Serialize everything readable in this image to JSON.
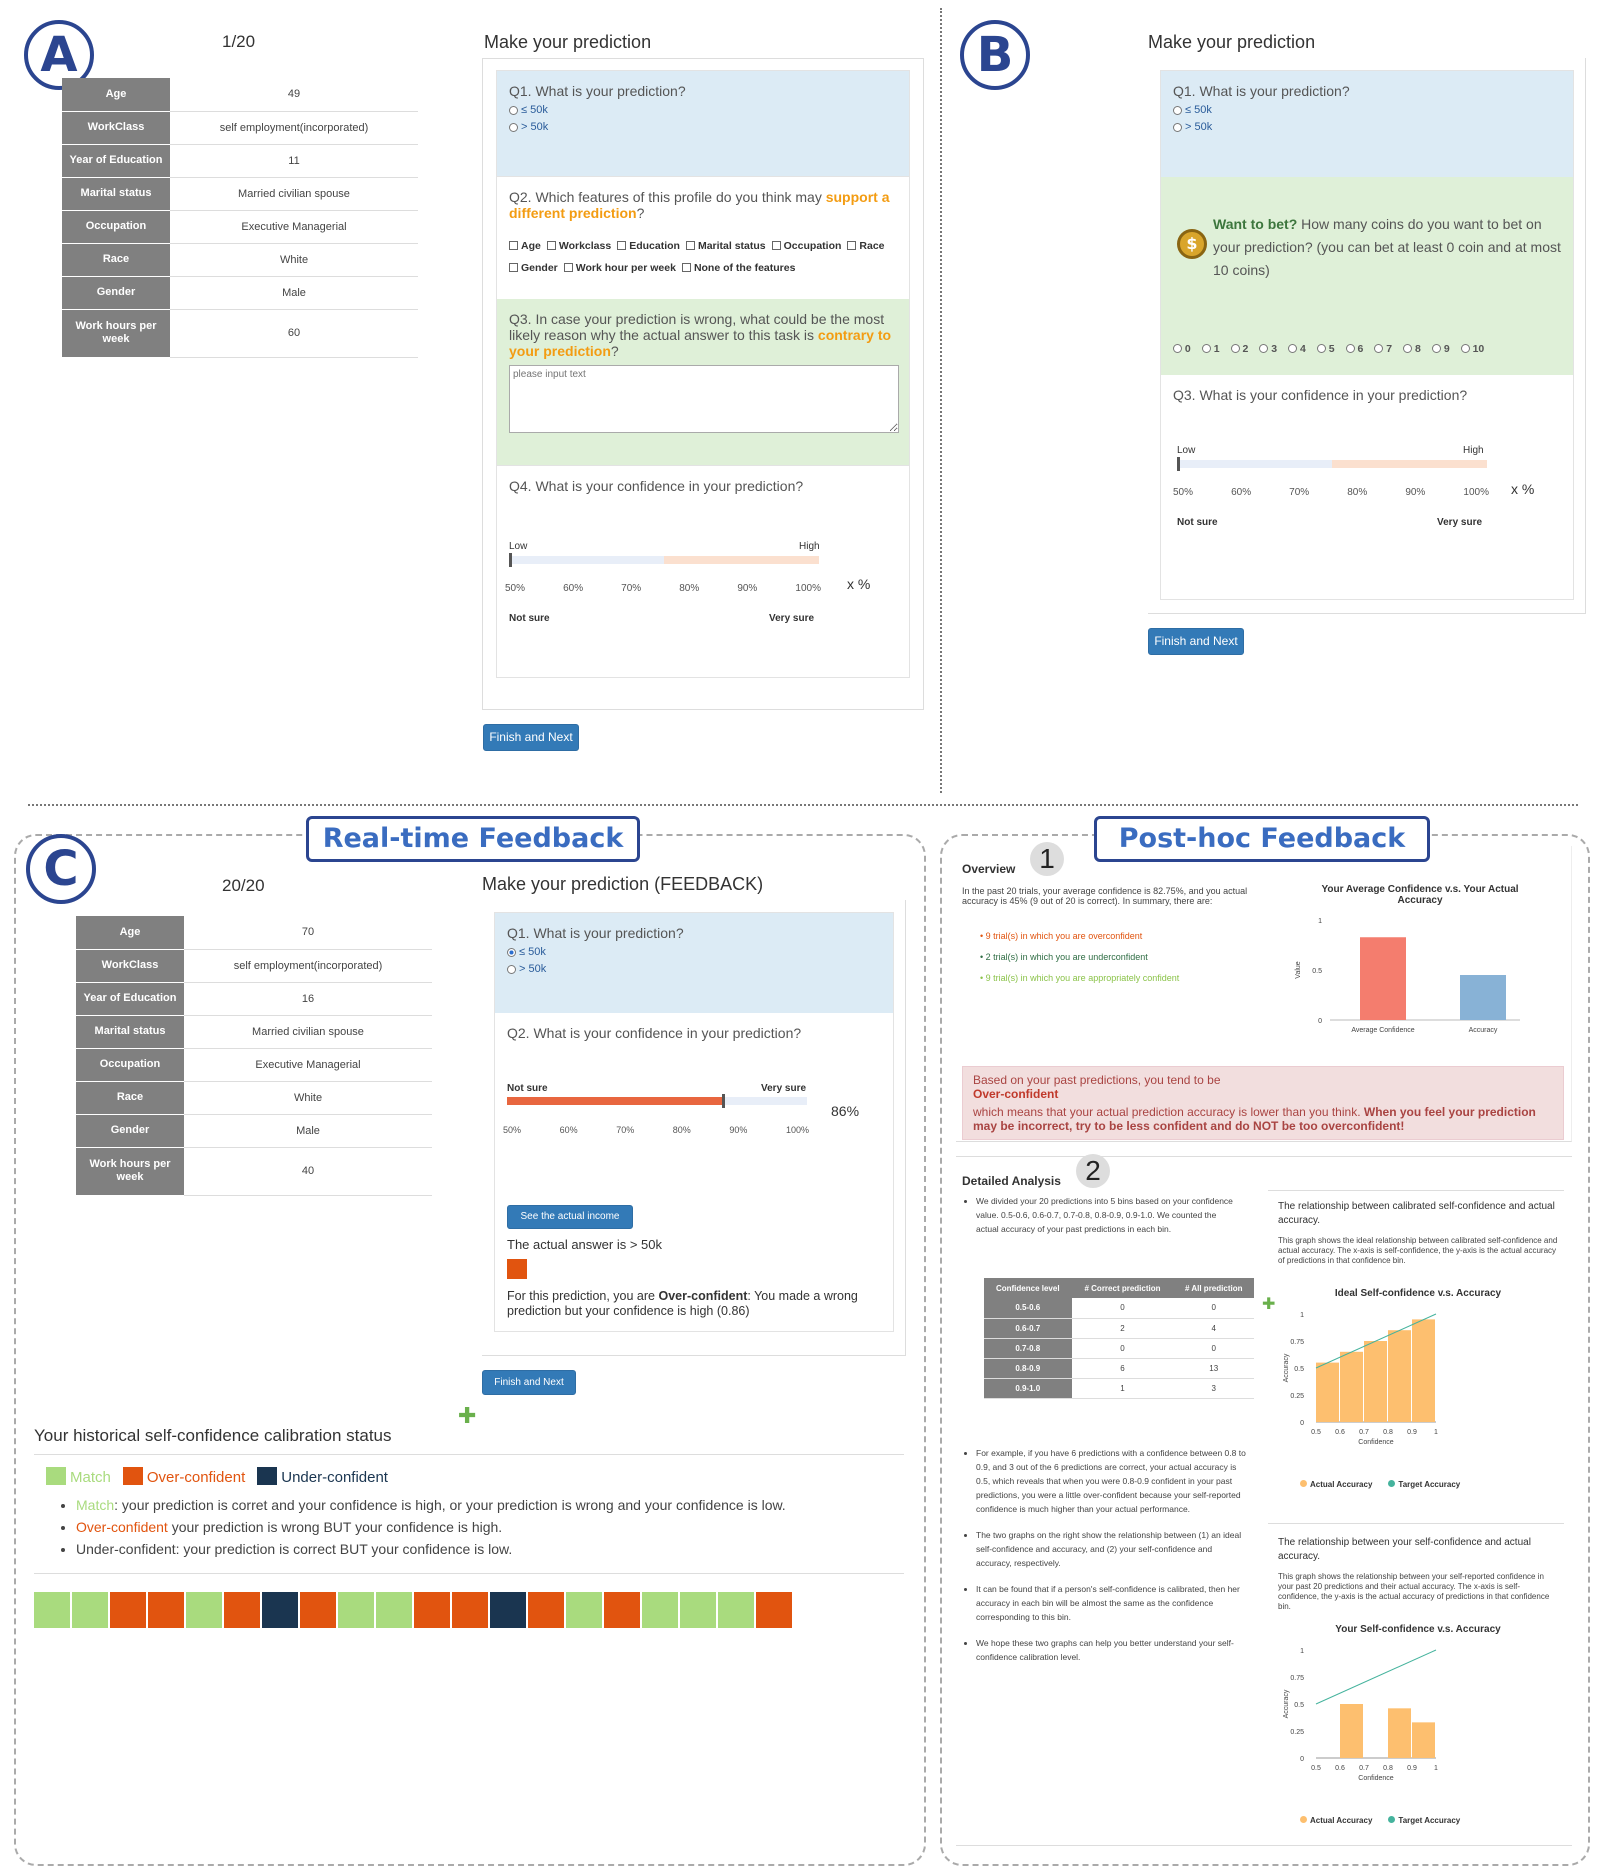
{
  "panelA": {
    "letter": "A",
    "counter": "1/20",
    "profile": [
      [
        "Age",
        "49"
      ],
      [
        "WorkClass",
        "self employment(incorporated)"
      ],
      [
        "Year of Education",
        "11"
      ],
      [
        "Marital status",
        "Married civilian spouse"
      ],
      [
        "Occupation",
        "Executive Managerial"
      ],
      [
        "Race",
        "White"
      ],
      [
        "Gender",
        "Male"
      ],
      [
        "Work hours per week",
        "60"
      ]
    ],
    "heading": "Make your prediction",
    "q1": "Q1. What is your prediction?",
    "opt1": "≤ 50k",
    "opt2": "> 50k",
    "q2_pre": "Q2. Which features of this profile do you think may ",
    "q2_hl": "support a different prediction",
    "q2_post": "?",
    "features": [
      "Age",
      "Workclass",
      "Education",
      "Marital status",
      "Occupation",
      "Race",
      "Gender",
      "Work hour per week",
      "None of the features"
    ],
    "q3_pre": "Q3. In case your prediction is wrong, what could be the most likely reason why the actual answer to this task is ",
    "q3_hl": "contrary to your prediction",
    "q3_post": "?",
    "placeholder": "please input text",
    "q4": "Q4. What is your confidence in your prediction?",
    "low": "Low",
    "high": "High",
    "ticks": [
      "50%",
      "60%",
      "70%",
      "80%",
      "90%",
      "100%"
    ],
    "xpct": "x %",
    "notsure": "Not sure",
    "verysure": "Very sure",
    "button": "Finish and Next"
  },
  "panelB": {
    "letter": "B",
    "heading": "Make your prediction",
    "q1": "Q1. What is your prediction?",
    "opt1": "≤ 50k",
    "opt2": "> 50k",
    "bet_hl": "Want to bet?",
    "bet_text": " How many coins do you want to bet on your prediction? (you can bet at least 0 coin and at most 10 coins)",
    "coins": [
      "0",
      "1",
      "2",
      "3",
      "4",
      "5",
      "6",
      "7",
      "8",
      "9",
      "10"
    ],
    "q3": "Q3. What is your confidence in your prediction?",
    "low": "Low",
    "high": "High",
    "ticks": [
      "50%",
      "60%",
      "70%",
      "80%",
      "90%",
      "100%"
    ],
    "xpct": "x %",
    "notsure": "Not sure",
    "verysure": "Very sure",
    "button": "Finish and Next"
  },
  "panelC": {
    "letter": "C",
    "title": "Real-time Feedback",
    "counter": "20/20",
    "profile": [
      [
        "Age",
        "70"
      ],
      [
        "WorkClass",
        "self employment(incorporated)"
      ],
      [
        "Year of Education",
        "16"
      ],
      [
        "Marital status",
        "Married civilian spouse"
      ],
      [
        "Occupation",
        "Executive Managerial"
      ],
      [
        "Race",
        "White"
      ],
      [
        "Gender",
        "Male"
      ],
      [
        "Work hours per week",
        "40"
      ]
    ],
    "heading": "Make your prediction (FEEDBACK)",
    "q1": "Q1. What is your prediction?",
    "opt1": "≤ 50k",
    "opt2": "> 50k",
    "q2": "Q2. What is your confidence in your prediction?",
    "notsure": "Not sure",
    "verysure": "Very sure",
    "pct": "86%",
    "confidence": 0.86,
    "ticks": [
      "50%",
      "60%",
      "70%",
      "80%",
      "90%",
      "100%"
    ],
    "see_button": "See the actual income",
    "actual": "The actual answer is > 50k",
    "fb_pre": "For this prediction, you are ",
    "fb_bold": "Over-confident",
    "fb_post": ": You made a wrong prediction but your confidence is high (0.86)",
    "button": "Finish and Next",
    "hist_title": "Your historical self-confidence calibration status",
    "legend": [
      "Match",
      "Over-confident",
      "Under-confident"
    ],
    "b1_hl": "Match",
    "b1": ": your prediction is corret and your confidence is high, or your prediction is wrong and your confidence is low.",
    "b2_hl": "Over-confident",
    "b2": " your prediction is wrong BUT your confidence is high.",
    "b3": "Under-confident: your prediction is correct BUT your confidence is low.",
    "history": [
      "match",
      "match",
      "over",
      "over",
      "match",
      "over",
      "under",
      "over",
      "match",
      "match",
      "over",
      "over",
      "under",
      "over",
      "match",
      "over",
      "match",
      "match",
      "match",
      "over"
    ],
    "colors": {
      "match": "#a9db7e",
      "over": "#e1540f",
      "under": "#1a3550"
    }
  },
  "panelD": {
    "title": "Post-hoc Feedback",
    "ov_label": "Overview",
    "n1": "1",
    "ov_text": "In the past 20 trials, your average confidence is 82.75%, and you actual accuracy is 45% (9 out of 20 is correct). In summary, there are:",
    "ov_items": [
      "9 trial(s) in which you are overconfident",
      "2 trial(s) in which you are underconfident",
      "9 trial(s) in which you are appropriately confident"
    ],
    "ov_chart_title": "Your Average Confidence v.s. Your Actual Accuracy",
    "ov_chart": {
      "type": "bar",
      "categories": [
        "Average Confidence",
        "Accuracy"
      ],
      "values": [
        0.8275,
        0.45
      ],
      "ylabel": "Value",
      "yticks": [
        "0",
        "0.5",
        "1"
      ],
      "ylim": [
        0,
        1
      ],
      "colors": [
        "#f47d6e",
        "#88b2d6"
      ]
    },
    "alert1": "Based on your past predictions, you tend to be",
    "alert2": "Over-confident",
    "alert3": "which means that your actual prediction accuracy is lower than you think. ",
    "alert4": "When you feel your prediction may be incorrect, try to be less confident and do NOT be too overconfident!",
    "da_label": "Detailed Analysis",
    "n2": "2",
    "da_b1": "We divided your 20 predictions into 5 bins based on your confidence value. 0.5-0.6, 0.6-0.7, 0.7-0.8, 0.8-0.9, 0.9-1.0. We counted the actual accuracy of your past predictions in each bin.",
    "table_head": [
      "Confidence level",
      "# Correct prediction",
      "# All prediction"
    ],
    "table": [
      [
        "0.5-0.6",
        "0",
        "0"
      ],
      [
        "0.6-0.7",
        "2",
        "4"
      ],
      [
        "0.7-0.8",
        "0",
        "0"
      ],
      [
        "0.8-0.9",
        "6",
        "13"
      ],
      [
        "0.9-1.0",
        "1",
        "3"
      ]
    ],
    "da_b2": "For example, if you have 6 predictions with a confidence between 0.8 to 0.9, and 3 out of the 6 predictions are correct, your actual accuracy is 0.5, which reveals that when you were 0.8-0.9 confident in your past predictions, you were a little over-confident because your self-reported confidence is much higher than your actual performance.",
    "da_b3": "The two graphs on the right show the relationship between (1) an ideal self-confidence and accuracy, and (2) your self-confidence and accuracy, respectively.",
    "da_b4": "It can be found that if a person's self-confidence is calibrated, then her accuracy in each bin will be almost the same as the confidence corresponding to this bin.",
    "da_b5": "We hope these two graphs can help you better understand your self-confidence calibration level.",
    "g1_head": "The relationship between calibrated self-confidence and actual accuracy.",
    "g1_desc": "This graph shows the ideal relationship between calibrated self-confidence and actual accuracy. The x-axis is self-confidence, the y-axis is the actual accuracy of predictions in that confidence bin.",
    "g1_title": "Ideal Self-confidence v.s. Accuracy",
    "g2_head": "The relationship between your self-confidence and actual accuracy.",
    "g2_desc": "This graph shows the relationship between your self-reported confidence in your past 20 predictions and their actual accuracy. The x-axis is self-confidence, the y-axis is the actual accuracy of predictions in that confidence bin.",
    "g2_title": "Your Self-confidence v.s. Accuracy",
    "xlabel": "Confidence",
    "ylabel": "Accuracy",
    "xticks": [
      "0.5",
      "0.6",
      "0.7",
      "0.8",
      "0.9",
      "1"
    ],
    "yticks": [
      "0",
      "0.25",
      "0.5",
      "0.75",
      "1"
    ],
    "legend": [
      "Actual Accuracy",
      "Target Accuracy"
    ],
    "chart_data": [
      {
        "type": "bar",
        "title": "Ideal Self-confidence v.s. Accuracy",
        "xlabel": "Confidence",
        "ylabel": "Accuracy",
        "categories": [
          "0.5-0.6",
          "0.6-0.7",
          "0.7-0.8",
          "0.8-0.9",
          "0.9-1.0"
        ],
        "series": [
          {
            "name": "Actual Accuracy",
            "values": [
              0.55,
              0.65,
              0.75,
              0.85,
              0.95
            ]
          },
          {
            "name": "Target Accuracy",
            "line": [
              [
                0.5,
                0.5
              ],
              [
                1,
                1
              ]
            ]
          }
        ],
        "ylim": [
          0,
          1
        ]
      },
      {
        "type": "bar",
        "title": "Your Self-confidence v.s. Accuracy",
        "xlabel": "Confidence",
        "ylabel": "Accuracy",
        "categories": [
          "0.5-0.6",
          "0.6-0.7",
          "0.7-0.8",
          "0.8-0.9",
          "0.9-1.0"
        ],
        "series": [
          {
            "name": "Actual Accuracy",
            "values": [
              0,
              0.5,
              0,
              0.46,
              0.33
            ]
          },
          {
            "name": "Target Accuracy",
            "line": [
              [
                0.5,
                0.5
              ],
              [
                1,
                1
              ]
            ]
          }
        ],
        "ylim": [
          0,
          1
        ]
      }
    ]
  }
}
